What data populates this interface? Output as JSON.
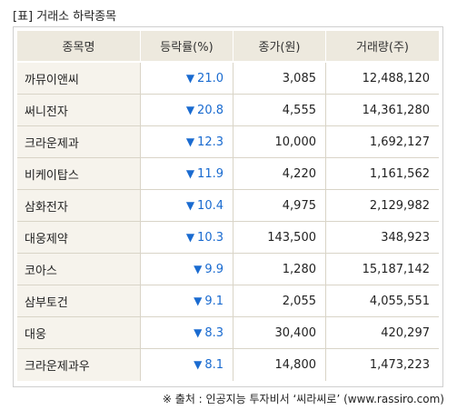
{
  "title": "[표] 거래소 하락종목",
  "headers": [
    "종목명",
    "등락률(%)",
    "종가(원)",
    "거래량(주)"
  ],
  "icons": {
    "down": "down-triangle-icon"
  },
  "colors": {
    "down": "#1a6bd0",
    "header_bg": "#ede9de",
    "name_bg": "#f6f3ec"
  },
  "rows": [
    {
      "name": "까뮤이앤씨",
      "change": "21.0",
      "close": "3,085",
      "volume": "12,488,120"
    },
    {
      "name": "써니전자",
      "change": "20.8",
      "close": "4,555",
      "volume": "14,361,280"
    },
    {
      "name": "크라운제과",
      "change": "12.3",
      "close": "10,000",
      "volume": "1,692,127"
    },
    {
      "name": "비케이탑스",
      "change": "11.9",
      "close": "4,220",
      "volume": "1,161,562"
    },
    {
      "name": "삼화전자",
      "change": "10.4",
      "close": "4,975",
      "volume": "2,129,982"
    },
    {
      "name": "대웅제약",
      "change": "10.3",
      "close": "143,500",
      "volume": "348,923"
    },
    {
      "name": "코아스",
      "change": "9.9",
      "close": "1,280",
      "volume": "15,187,142"
    },
    {
      "name": "삼부토건",
      "change": "9.1",
      "close": "2,055",
      "volume": "4,055,551"
    },
    {
      "name": "대웅",
      "change": "8.3",
      "close": "30,400",
      "volume": "420,297"
    },
    {
      "name": "크라운제과우",
      "change": "8.1",
      "close": "14,800",
      "volume": "1,473,223"
    }
  ],
  "source": "※ 출처 : 인공지능 투자비서 ‘씨라씨로’ (www.rassiro.com)"
}
